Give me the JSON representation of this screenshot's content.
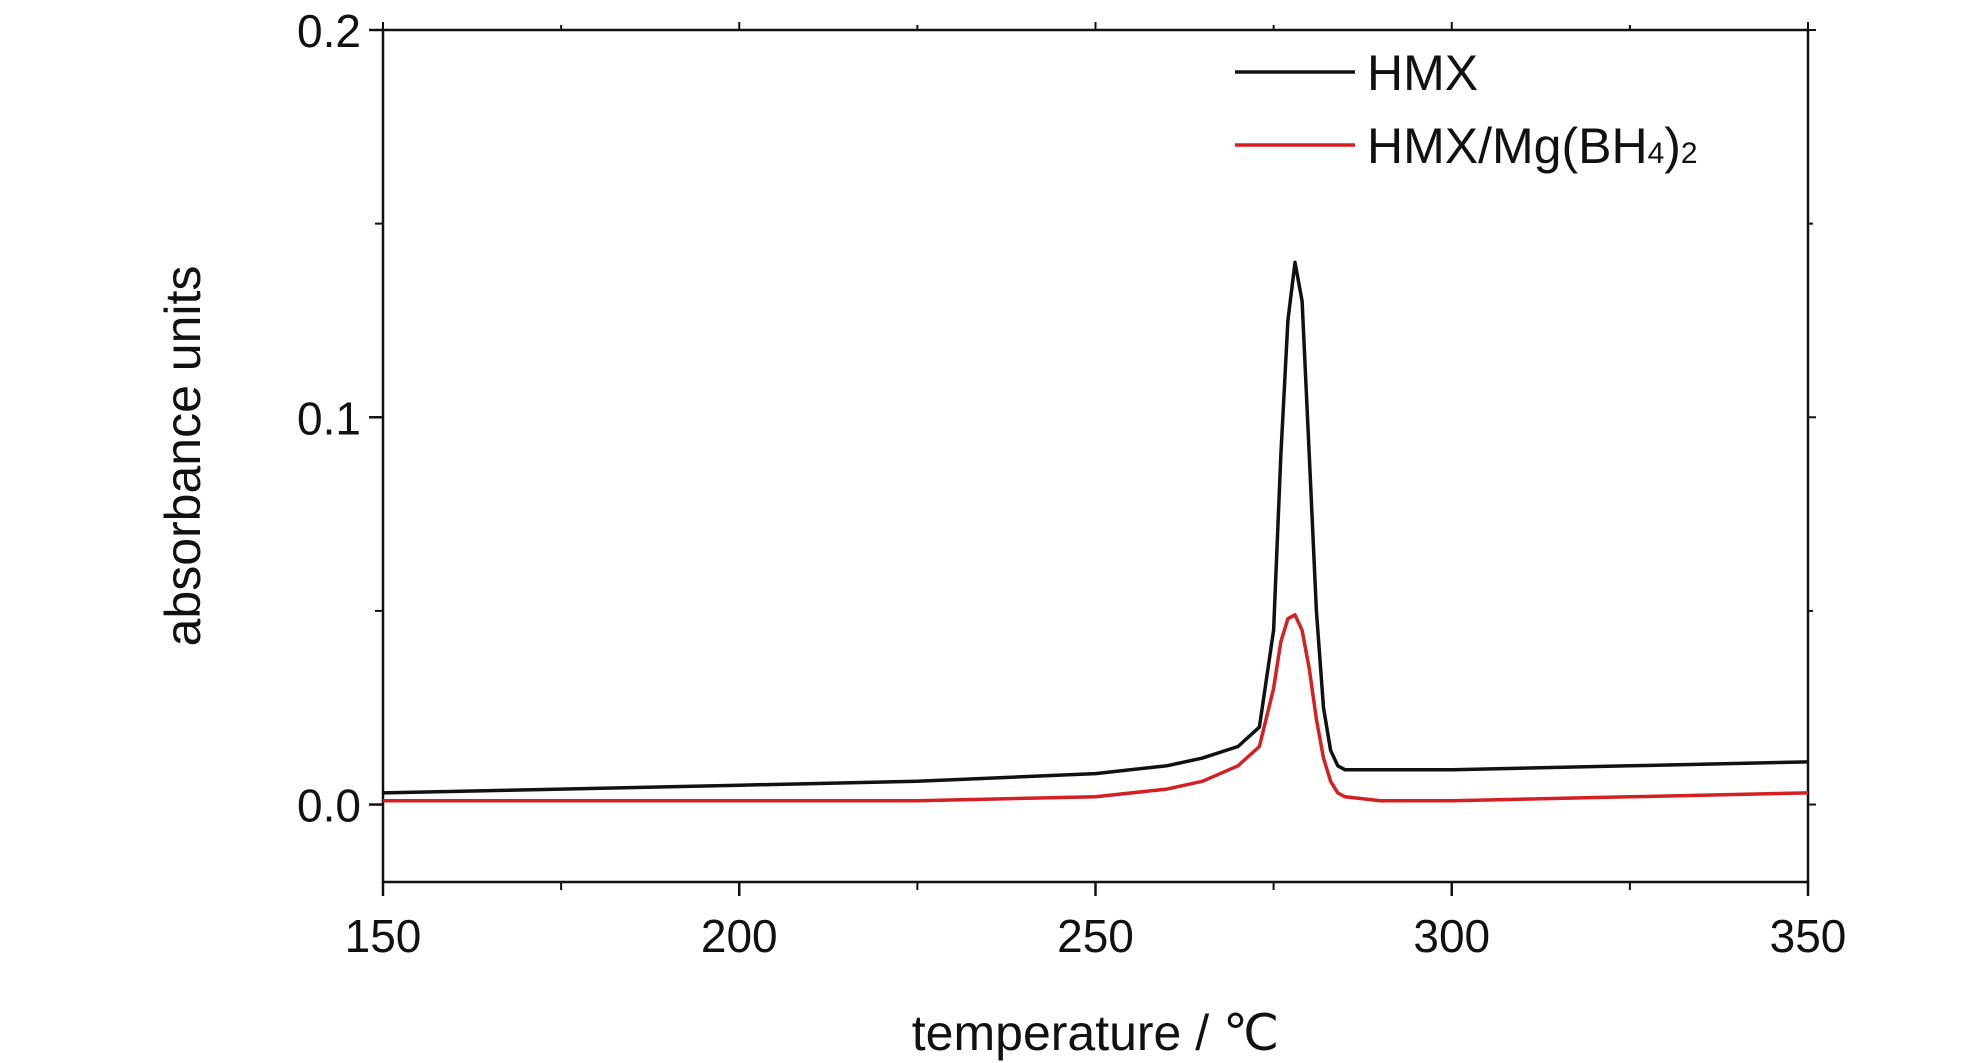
{
  "chart_data": {
    "type": "line",
    "xlabel": "temperature / ℃",
    "ylabel": "absorbance units",
    "xlim": [
      150,
      350
    ],
    "ylim": [
      -0.02,
      0.2
    ],
    "x_ticks": [
      "150",
      "200",
      "250",
      "300",
      "350"
    ],
    "y_ticks": [
      "0.0",
      "0.1",
      "0.2"
    ],
    "x_minor_ticks": [
      175,
      225,
      275,
      325
    ],
    "y_minor_ticks": [
      0.05,
      0.15
    ],
    "legend_position": "top-right",
    "grid": false,
    "series": [
      {
        "name": "HMX",
        "color": "#111111",
        "x": [
          150,
          175,
          200,
          225,
          250,
          260,
          265,
          270,
          273,
          275,
          276,
          277,
          278,
          279,
          280,
          281,
          282,
          283,
          284,
          285,
          290,
          300,
          325,
          350
        ],
        "y": [
          0.003,
          0.004,
          0.005,
          0.006,
          0.008,
          0.01,
          0.012,
          0.015,
          0.02,
          0.045,
          0.09,
          0.125,
          0.14,
          0.13,
          0.09,
          0.05,
          0.025,
          0.014,
          0.01,
          0.009,
          0.009,
          0.009,
          0.01,
          0.011
        ]
      },
      {
        "name": "HMX/Mg(BH4)2",
        "name_display": {
          "main": "HMX/Mg(BH",
          "sub1": "4",
          "mid": ")",
          "sub2": "2"
        },
        "color": "#d42020",
        "x": [
          150,
          175,
          200,
          225,
          250,
          260,
          265,
          270,
          273,
          275,
          276,
          277,
          278,
          279,
          280,
          281,
          282,
          283,
          284,
          285,
          290,
          300,
          325,
          350
        ],
        "y": [
          0.001,
          0.001,
          0.001,
          0.001,
          0.002,
          0.004,
          0.006,
          0.01,
          0.015,
          0.03,
          0.042,
          0.048,
          0.049,
          0.045,
          0.035,
          0.022,
          0.012,
          0.006,
          0.003,
          0.002,
          0.001,
          0.001,
          0.002,
          0.003
        ]
      }
    ]
  }
}
